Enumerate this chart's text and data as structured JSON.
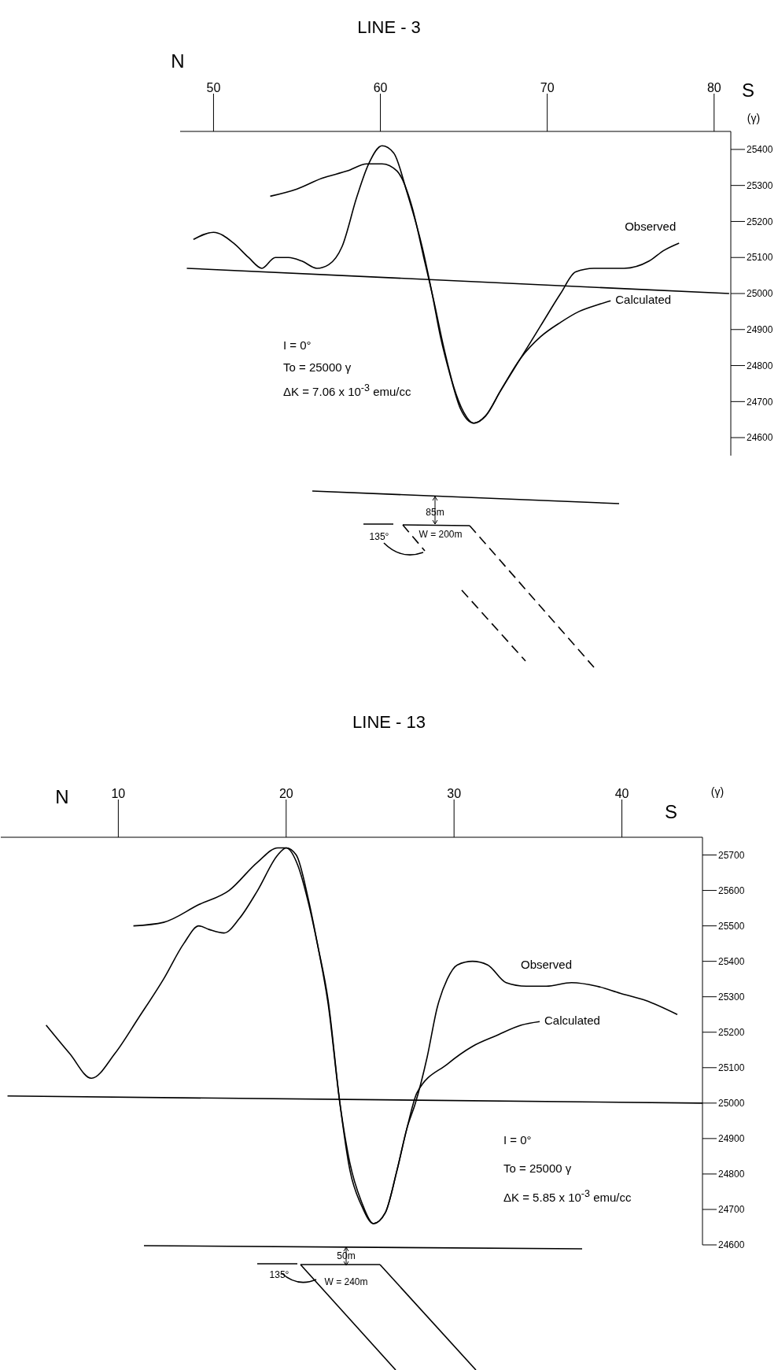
{
  "chart_data": [
    {
      "type": "line",
      "title": "LINE - 3",
      "ylabel": "(γ)",
      "marker": "none",
      "line_style": "solid",
      "xlim": [
        48,
        81
      ],
      "xticks": [
        50,
        60,
        70,
        80
      ],
      "ylim": [
        24550,
        25450
      ],
      "yticks": [
        24600,
        24700,
        24800,
        24900,
        25000,
        25100,
        25200,
        25300,
        25400
      ],
      "annotations": [
        "N",
        "S",
        "I = 0°",
        "To = 25000 γ",
        "ΔK = 7.06 x 10$^{-3}$ emu/cc",
        "85m",
        "135°",
        "W = 200m"
      ],
      "series": [
        {
          "name": "Observed",
          "color": "#000000",
          "x": [
            48.8,
            50.0,
            51.2,
            52.1,
            52.9,
            53.7,
            54.5,
            55.3,
            56.2,
            56.9,
            57.7,
            58.6,
            59.3,
            60.1,
            60.8,
            61.6,
            62.5,
            63.1,
            63.6,
            64.2,
            64.8,
            65.6,
            66.3,
            67.2,
            68.4,
            69.6,
            70.8,
            71.7,
            72.8,
            74.6,
            76.1,
            77.0,
            77.9
          ],
          "values": [
            25150,
            25170,
            25140,
            25100,
            25070,
            25100,
            25100,
            25090,
            25070,
            25080,
            25130,
            25270,
            25360,
            25410,
            25390,
            25280,
            25130,
            25000,
            24880,
            24770,
            24680,
            24640,
            24660,
            24730,
            24820,
            24910,
            25000,
            25060,
            25070,
            25070,
            25090,
            25120,
            25140
          ]
        },
        {
          "name": "Calculated",
          "color": "#000000",
          "x": [
            53.4,
            55.0,
            56.5,
            58.0,
            59.2,
            60.1,
            61.0,
            61.9,
            62.6,
            63.2,
            63.8,
            64.4,
            65.0,
            65.6,
            66.3,
            67.2,
            68.4,
            69.6,
            70.8,
            71.9,
            73.1,
            73.8
          ],
          "values": [
            25270,
            25290,
            25320,
            25340,
            25360,
            25360,
            25340,
            25240,
            25100,
            24980,
            24850,
            24740,
            24670,
            24640,
            24660,
            24730,
            24820,
            24880,
            24920,
            24950,
            24970,
            24980
          ]
        },
        {
          "color": "#000000",
          "x": [
            48.4,
            80.9
          ],
          "values": [
            25070,
            25000
          ]
        }
      ]
    },
    {
      "type": "line",
      "title": "LINE - 13",
      "ylabel": "(γ)",
      "marker": "none",
      "line_style": "solid",
      "xlim": [
        3,
        44.8
      ],
      "xticks": [
        10,
        20,
        30,
        40
      ],
      "ylim": [
        24600,
        25750
      ],
      "yticks": [
        24600,
        24700,
        24800,
        24900,
        25000,
        25100,
        25200,
        25300,
        25400,
        25500,
        25600,
        25700
      ],
      "annotations": [
        "N",
        "S",
        "I = 0°",
        "To = 25000 γ",
        "ΔK = 5.85 x 10$^{-3}$ emu/cc",
        "50m",
        "135°",
        "W = 240m"
      ],
      "series": [
        {
          "name": "Observed",
          "color": "#000000",
          "x": [
            5.7,
            7.1,
            8.4,
            9.8,
            11.2,
            12.7,
            13.9,
            14.8,
            15.4,
            16.3,
            17.2,
            18.3,
            19.5,
            20.0,
            20.7,
            21.3,
            21.9,
            22.5,
            23.2,
            23.8,
            24.5,
            25.2,
            25.9,
            26.6,
            27.2,
            27.7,
            28.4,
            29.0,
            29.6,
            30.2,
            31.1,
            32.0,
            33.1,
            34.3,
            35.5,
            37.0,
            38.5,
            39.9,
            41.4,
            43.3
          ],
          "values": [
            25220,
            25140,
            25070,
            25140,
            25240,
            25350,
            25450,
            25500,
            25490,
            25480,
            25520,
            25600,
            25700,
            25720,
            25670,
            25570,
            25440,
            25290,
            25000,
            24810,
            24710,
            24660,
            24690,
            24810,
            24930,
            25000,
            25130,
            25270,
            25350,
            25390,
            25400,
            25390,
            25340,
            25330,
            25330,
            25340,
            25330,
            25310,
            25290,
            25250
          ]
        },
        {
          "name": "Calculated",
          "color": "#000000",
          "x": [
            10.9,
            12.7,
            14.8,
            16.6,
            18.3,
            19.5,
            20.0,
            20.6,
            21.3,
            21.9,
            22.5,
            23.2,
            23.8,
            24.5,
            25.2,
            25.9,
            26.6,
            27.2,
            27.8,
            29.6,
            31.1,
            32.5,
            34.0,
            35.1
          ],
          "values": [
            25500,
            25510,
            25560,
            25600,
            25680,
            25720,
            25720,
            25700,
            25580,
            25440,
            25280,
            25000,
            24830,
            24720,
            24660,
            24690,
            24810,
            24930,
            25030,
            25110,
            25160,
            25190,
            25220,
            25230
          ]
        },
        {
          "color": "#000000",
          "x": [
            3.4,
            44.8
          ],
          "values": [
            25020,
            25000
          ]
        }
      ]
    }
  ]
}
